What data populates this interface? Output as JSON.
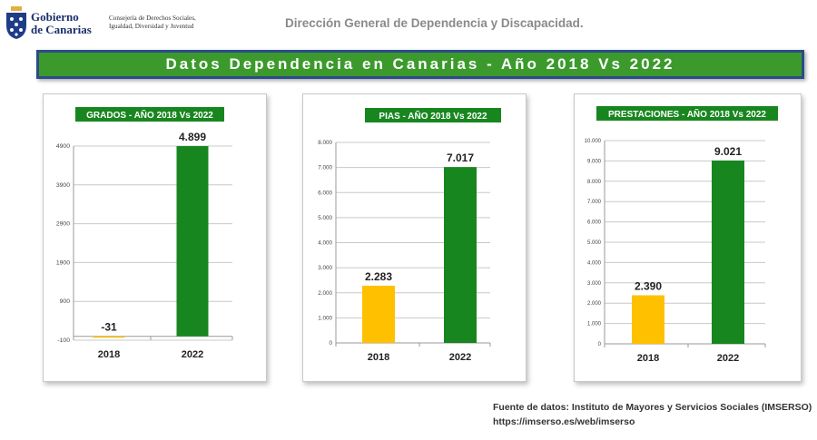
{
  "header": {
    "brand": [
      "Gobierno",
      "de Canarias"
    ],
    "consejeria": [
      "Consejería de Derechos Sociales,",
      "Igualdad, Diversidad y Juventud"
    ],
    "direccion": "Dirección General de Dependencia y Discapacidad."
  },
  "banner": {
    "title": "Datos Dependencia en Canarias - Año 2018 Vs 2022"
  },
  "source": {
    "line1": "Fuente de datos: Instituto de Mayores y Servicios Sociales (IMSERSO)",
    "line2": "https://imserso.es/web/imserso"
  },
  "colors": {
    "bar2018": "#ffc000",
    "bar2022": "#18861f",
    "title_bg": "#18861f",
    "banner_bg": "#3c9a2c",
    "banner_border": "#2c4b8a"
  },
  "chart_data": [
    {
      "type": "bar",
      "title": "GRADOS - AÑO 2018 Vs 2022",
      "categories": [
        "2018",
        "2022"
      ],
      "values": [
        -31,
        4899
      ],
      "data_labels": [
        "-31",
        "4.899"
      ],
      "yticks": [
        "4900",
        "3900",
        "2900",
        "1900",
        "900",
        "-100"
      ],
      "ylim": [
        -100,
        4900
      ],
      "grid": true
    },
    {
      "type": "bar",
      "title": "PIAS - AÑO 2018 Vs 2022",
      "categories": [
        "2018",
        "2022"
      ],
      "values": [
        2283,
        7017
      ],
      "data_labels": [
        "2.283",
        "7.017"
      ],
      "yticks": [
        "8.000",
        "7.000",
        "6.000",
        "5.000",
        "4.000",
        "3.000",
        "2.000",
        "1.000",
        "0"
      ],
      "ylim": [
        0,
        8000
      ],
      "grid": true
    },
    {
      "type": "bar",
      "title": "PRESTACIONES - AÑO 2018 Vs 2022",
      "categories": [
        "2018",
        "2022"
      ],
      "values": [
        2390,
        9021
      ],
      "data_labels": [
        "2.390",
        "9.021"
      ],
      "yticks": [
        "10.000",
        "9.000",
        "8.000",
        "7.000",
        "6.000",
        "5.000",
        "4.000",
        "3.000",
        "2.000",
        "1.000",
        "0"
      ],
      "ylim": [
        0,
        10000
      ],
      "grid": true
    }
  ]
}
